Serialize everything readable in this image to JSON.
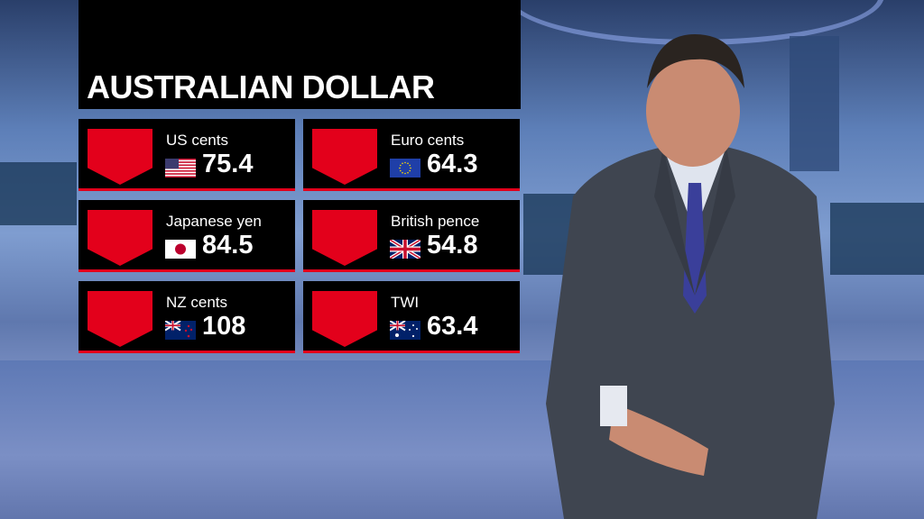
{
  "title": "AUSTRALIAN DOLLAR",
  "colors": {
    "down": "#e3001b",
    "panel": "#000000"
  },
  "cards": [
    {
      "label": "US cents",
      "value": "75.4",
      "flag": "us-flag-icon",
      "direction": "down"
    },
    {
      "label": "Euro cents",
      "value": "64.3",
      "flag": "eu-flag-icon",
      "direction": "down"
    },
    {
      "label": "Japanese yen",
      "value": "84.5",
      "flag": "japan-flag-icon",
      "direction": "down"
    },
    {
      "label": "British pence",
      "value": "54.8",
      "flag": "uk-flag-icon",
      "direction": "down"
    },
    {
      "label": "NZ cents",
      "value": "108",
      "flag": "nz-flag-icon",
      "direction": "down"
    },
    {
      "label": "TWI",
      "value": "63.4",
      "flag": "australia-flag-icon",
      "direction": "down"
    }
  ]
}
